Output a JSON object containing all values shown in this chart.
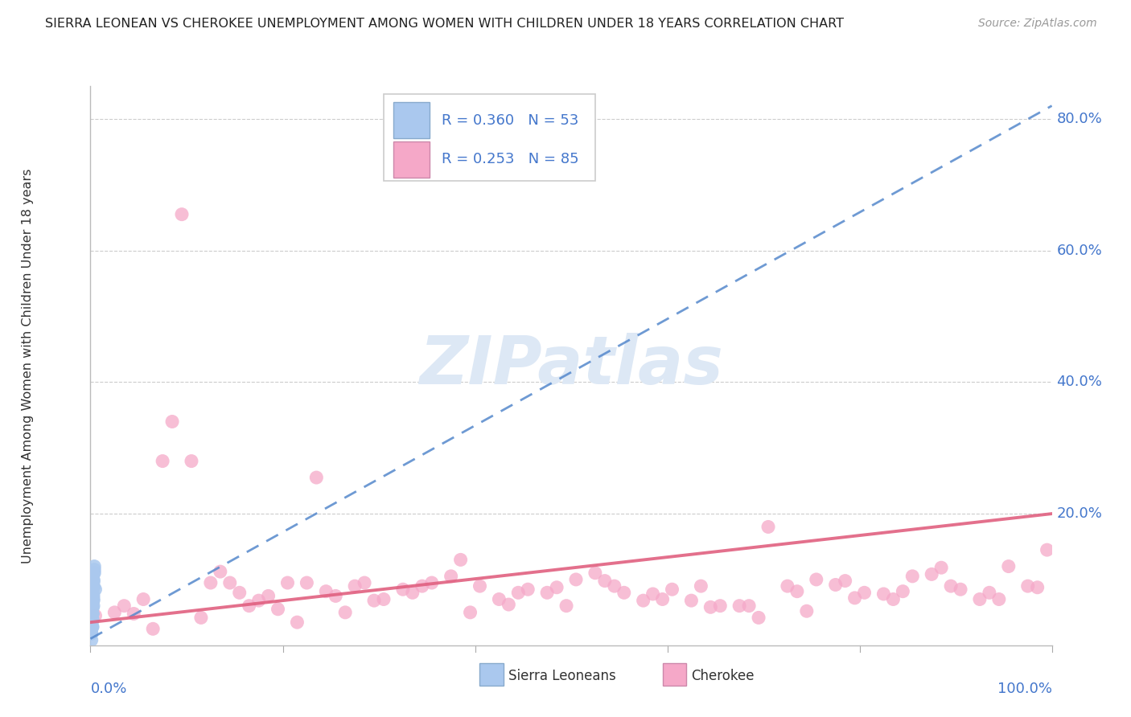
{
  "title": "SIERRA LEONEAN VS CHEROKEE UNEMPLOYMENT AMONG WOMEN WITH CHILDREN UNDER 18 YEARS CORRELATION CHART",
  "source": "Source: ZipAtlas.com",
  "ylabel": "Unemployment Among Women with Children Under 18 years",
  "xlim": [
    0,
    1.0
  ],
  "ylim": [
    0,
    0.85
  ],
  "ytick_values": [
    0.2,
    0.4,
    0.6,
    0.8
  ],
  "ytick_labels": [
    "20.0%",
    "40.0%",
    "60.0%",
    "80.0%"
  ],
  "legend_r1": "R = 0.360",
  "legend_n1": "N = 53",
  "legend_r2": "R = 0.253",
  "legend_n2": "N = 85",
  "color_sierra": "#aac8ee",
  "color_cherokee": "#f5a8c8",
  "color_sierra_line": "#5588cc",
  "color_cherokee_line": "#e06080",
  "color_axis_label": "#4477cc",
  "background": "#ffffff",
  "sierra_line_x": [
    0.0,
    1.0
  ],
  "sierra_line_y": [
    0.01,
    0.82
  ],
  "cherokee_line_x": [
    0.0,
    1.0
  ],
  "cherokee_line_y": [
    0.035,
    0.2
  ],
  "sierra_x": [
    0.002,
    0.003,
    0.004,
    0.002,
    0.005,
    0.003,
    0.001,
    0.004,
    0.003,
    0.002,
    0.002,
    0.002,
    0.001,
    0.002,
    0.003,
    0.003,
    0.002,
    0.002,
    0.001,
    0.002,
    0.002,
    0.003,
    0.003,
    0.002,
    0.002,
    0.002,
    0.003,
    0.002,
    0.002,
    0.004,
    0.001,
    0.003,
    0.002,
    0.001,
    0.001,
    0.002,
    0.003,
    0.002,
    0.002,
    0.002,
    0.001,
    0.002,
    0.002,
    0.001,
    0.003,
    0.002,
    0.002,
    0.003,
    0.001,
    0.002,
    0.001,
    0.003,
    0.002
  ],
  "sierra_y": [
    0.08,
    0.1,
    0.12,
    0.065,
    0.085,
    0.06,
    0.05,
    0.11,
    0.075,
    0.04,
    0.07,
    0.055,
    0.025,
    0.075,
    0.09,
    0.095,
    0.065,
    0.08,
    0.018,
    0.048,
    0.058,
    0.07,
    0.088,
    0.038,
    0.078,
    0.048,
    0.098,
    0.058,
    0.028,
    0.115,
    0.038,
    0.068,
    0.048,
    0.018,
    0.038,
    0.058,
    0.088,
    0.028,
    0.068,
    0.038,
    0.008,
    0.048,
    0.078,
    0.028,
    0.108,
    0.038,
    0.058,
    0.098,
    0.028,
    0.068,
    0.018,
    0.088,
    0.048
  ],
  "cherokee_x": [
    0.005,
    0.055,
    0.105,
    0.155,
    0.205,
    0.255,
    0.305,
    0.355,
    0.405,
    0.455,
    0.505,
    0.555,
    0.605,
    0.655,
    0.705,
    0.755,
    0.805,
    0.855,
    0.905,
    0.955,
    0.025,
    0.085,
    0.125,
    0.185,
    0.225,
    0.285,
    0.325,
    0.385,
    0.425,
    0.485,
    0.525,
    0.585,
    0.625,
    0.685,
    0.725,
    0.785,
    0.825,
    0.885,
    0.925,
    0.985,
    0.035,
    0.075,
    0.135,
    0.175,
    0.235,
    0.275,
    0.335,
    0.375,
    0.435,
    0.475,
    0.535,
    0.575,
    0.635,
    0.675,
    0.735,
    0.775,
    0.835,
    0.875,
    0.935,
    0.975,
    0.045,
    0.095,
    0.145,
    0.195,
    0.245,
    0.295,
    0.345,
    0.395,
    0.445,
    0.495,
    0.545,
    0.595,
    0.645,
    0.695,
    0.745,
    0.795,
    0.845,
    0.895,
    0.945,
    0.995,
    0.065,
    0.115,
    0.165,
    0.215,
    0.265
  ],
  "cherokee_y": [
    0.045,
    0.07,
    0.28,
    0.08,
    0.095,
    0.075,
    0.07,
    0.095,
    0.09,
    0.085,
    0.1,
    0.08,
    0.085,
    0.06,
    0.18,
    0.1,
    0.08,
    0.105,
    0.085,
    0.12,
    0.05,
    0.34,
    0.095,
    0.075,
    0.095,
    0.095,
    0.085,
    0.13,
    0.07,
    0.088,
    0.11,
    0.078,
    0.068,
    0.06,
    0.09,
    0.098,
    0.078,
    0.118,
    0.07,
    0.088,
    0.06,
    0.28,
    0.112,
    0.068,
    0.255,
    0.09,
    0.08,
    0.105,
    0.062,
    0.08,
    0.098,
    0.068,
    0.09,
    0.06,
    0.082,
    0.092,
    0.07,
    0.108,
    0.08,
    0.09,
    0.048,
    0.655,
    0.095,
    0.055,
    0.082,
    0.068,
    0.09,
    0.05,
    0.08,
    0.06,
    0.09,
    0.07,
    0.058,
    0.042,
    0.052,
    0.072,
    0.082,
    0.09,
    0.07,
    0.145,
    0.025,
    0.042,
    0.06,
    0.035,
    0.05
  ]
}
